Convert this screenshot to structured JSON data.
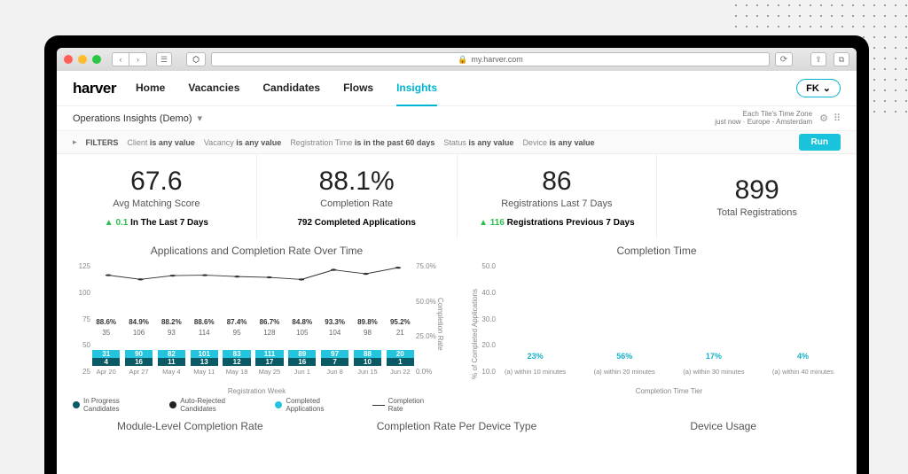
{
  "browser": {
    "url_display": "my.harver.com",
    "lock": "🔒"
  },
  "nav": {
    "logo": "harver",
    "tabs": [
      "Home",
      "Vacancies",
      "Candidates",
      "Flows",
      "Insights"
    ],
    "active_index": 4,
    "user_initials": "FK"
  },
  "subheader": {
    "title": "Operations Insights (Demo)",
    "tz_label": "Each Tile's Time Zone",
    "tz_value": "Europe - Amsterdam",
    "updated": "just now"
  },
  "filters": {
    "label": "FILTERS",
    "items": [
      {
        "k": "Client",
        "v": "is any value"
      },
      {
        "k": "Vacancy",
        "v": "is any value"
      },
      {
        "k": "Registration Time",
        "v": "is in the past 60 days"
      },
      {
        "k": "Status",
        "v": "is any value"
      },
      {
        "k": "Device",
        "v": "is any value"
      }
    ],
    "run": "Run"
  },
  "kpis": [
    {
      "value": "67.6",
      "label": "Avg Matching Score",
      "delta": "0.1",
      "delta_text": "In The Last 7 Days",
      "delta_dir": "up"
    },
    {
      "value": "88.1%",
      "label": "Completion Rate",
      "sub": "792 Completed Applications"
    },
    {
      "value": "86",
      "label": "Registrations Last 7 Days",
      "delta": "116",
      "delta_text": "Registrations Previous 7 Days",
      "delta_dir": "up"
    },
    {
      "value": "899",
      "label": "Total Registrations"
    }
  ],
  "left_chart": {
    "title": "Applications and Completion Rate Over Time",
    "xlabel": "Registration Week",
    "y_ticks": [
      "125",
      "100",
      "75",
      "50",
      "25"
    ],
    "y2_ticks": [
      "75.0%",
      "50.0%",
      "25.0%",
      "0.0%"
    ],
    "y2_label": "Completion Rate",
    "y_max": 130,
    "weeks": [
      {
        "x": "Apr 20",
        "total": 35,
        "completed": 31,
        "inprog": 4,
        "auto": 0,
        "rate": "88.6%"
      },
      {
        "x": "Apr 27",
        "total": 106,
        "completed": 90,
        "inprog": 16,
        "auto": 0,
        "rate": "84.9%"
      },
      {
        "x": "May 4",
        "total": 93,
        "completed": 82,
        "inprog": 11,
        "auto": 0,
        "rate": "88.2%"
      },
      {
        "x": "May 11",
        "total": 114,
        "completed": 101,
        "inprog": 13,
        "auto": 0,
        "rate": "88.6%"
      },
      {
        "x": "May 18",
        "total": 95,
        "completed": 83,
        "inprog": 12,
        "auto": 0,
        "rate": "87.4%"
      },
      {
        "x": "May 25",
        "total": 128,
        "completed": 111,
        "inprog": 17,
        "auto": 0,
        "rate": "86.7%"
      },
      {
        "x": "Jun 1",
        "total": 105,
        "completed": 89,
        "inprog": 16,
        "auto": 0,
        "rate": "84.8%"
      },
      {
        "x": "Jun 8",
        "total": 104,
        "completed": 97,
        "inprog": 7,
        "auto": 0,
        "rate": "93.3%"
      },
      {
        "x": "Jun 15",
        "total": 98,
        "completed": 88,
        "inprog": 10,
        "auto": 0,
        "rate": "89.8%"
      },
      {
        "x": "Jun 22",
        "total": 21,
        "completed": 20,
        "inprog": 1,
        "auto": 0,
        "rate": "95.2%"
      }
    ],
    "legend": [
      {
        "label": "In Progress Candidates",
        "color": "#0a5a66",
        "type": "dot"
      },
      {
        "label": "Auto-Rejected Candidates",
        "color": "#222",
        "type": "dot"
      },
      {
        "label": "Completed Applications",
        "color": "#25c4de",
        "type": "dot"
      },
      {
        "label": "Completion Rate",
        "color": "#333",
        "type": "line"
      }
    ]
  },
  "right_chart": {
    "title": "Completion Time",
    "ylabel": "% of Completed Applications",
    "xlabel": "Completion Time Tier",
    "y_ticks": [
      "50.0",
      "40.0",
      "30.0",
      "20.0",
      "10.0"
    ],
    "y_max": 60,
    "bars": [
      {
        "x": "(a) within 10 minutes",
        "pct": 23
      },
      {
        "x": "(a) within 20 minutes",
        "pct": 56
      },
      {
        "x": "(a) within 30 minutes",
        "pct": 17
      },
      {
        "x": "(a) within 40 minutes",
        "pct": 4
      }
    ],
    "bar_color": "#25c4de"
  },
  "next_row_titles": [
    "Module-Level Completion Rate",
    "Completion Rate Per Device Type",
    "Device Usage"
  ],
  "colors": {
    "accent": "#19c3dc",
    "traffic": {
      "red": "#ff5f57",
      "yellow": "#febc2e",
      "green": "#28c840"
    }
  }
}
